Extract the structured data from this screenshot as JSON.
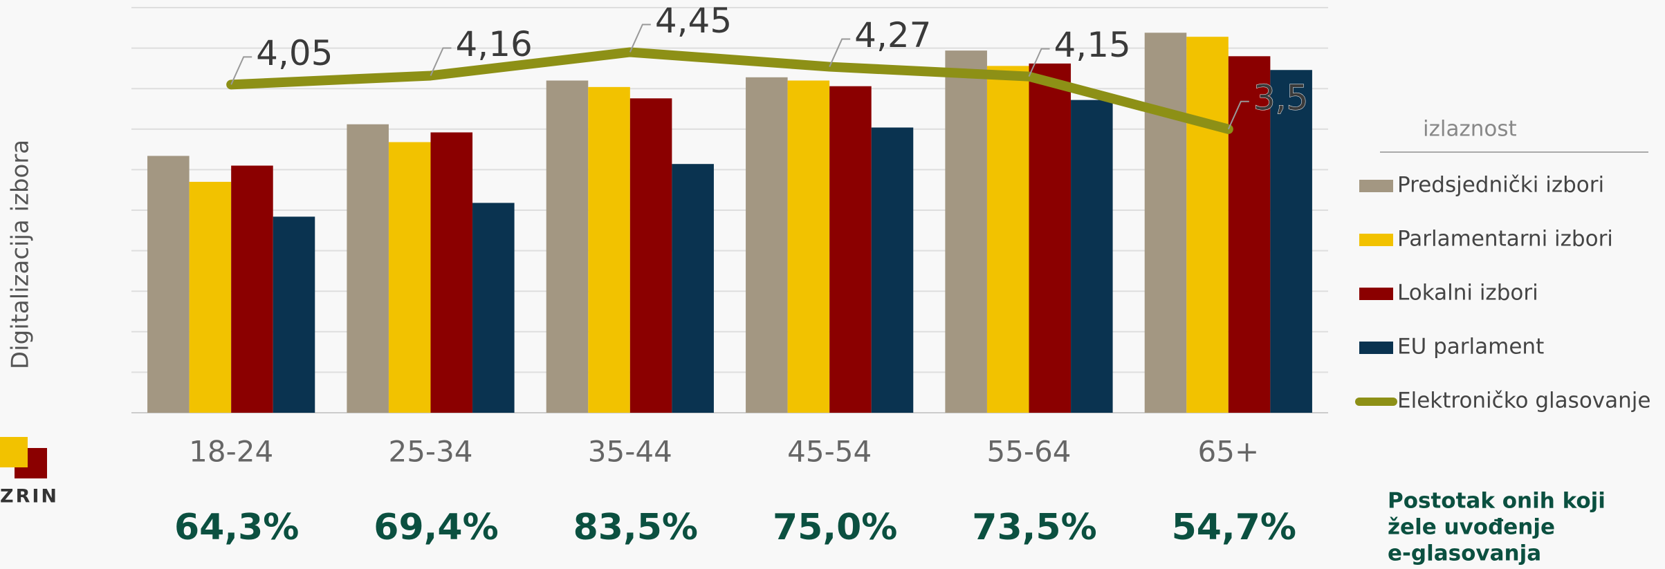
{
  "chart_data": {
    "type": "bar",
    "y_axis_label": "Digitalizacija izbora",
    "categories": [
      "18-24",
      "25-34",
      "35-44",
      "45-54",
      "55-64",
      "65+"
    ],
    "series": [
      {
        "name": "Predsjednički izbori",
        "color": "#a39782",
        "values": [
          3.17,
          3.56,
          4.1,
          4.14,
          4.47,
          4.69
        ]
      },
      {
        "name": "Parlamentarni izbori",
        "color": "#f2c200",
        "values": [
          2.85,
          3.34,
          4.02,
          4.1,
          4.28,
          4.64
        ]
      },
      {
        "name": "Lokalni izbori",
        "color": "#8b0000",
        "values": [
          3.05,
          3.46,
          3.88,
          4.03,
          4.31,
          4.4
        ]
      },
      {
        "name": "EU parlament",
        "color": "#0a3350",
        "values": [
          2.42,
          2.59,
          3.07,
          3.52,
          3.86,
          4.23
        ]
      },
      {
        "name": "Elektroničko glasovanje",
        "color": "#8d9016",
        "type": "line",
        "values": [
          4.05,
          4.16,
          4.45,
          4.27,
          4.15,
          3.5
        ],
        "value_labels": [
          "4,05",
          "4,16",
          "4,45",
          "4,27",
          "4,15",
          "3,5"
        ]
      }
    ],
    "ylim": [
      0,
      5
    ],
    "yticks": [
      0,
      0.5,
      1,
      1.5,
      2,
      2.5,
      3,
      3.5,
      4,
      4.5,
      5
    ],
    "grid": true,
    "legend_title": "izlaznost",
    "legend": "right",
    "footer": {
      "title_lines": [
        "Postotak onih koji",
        "žele uvođenje",
        "e-glasovanja"
      ],
      "values": [
        64.3,
        69.4,
        83.5,
        75.0,
        73.5,
        54.7
      ],
      "value_labels": [
        "64,3%",
        "69,4%",
        "83,5%",
        "75,0%",
        "73,5%",
        "54,7%"
      ]
    },
    "logo_text": "ZRIN"
  }
}
